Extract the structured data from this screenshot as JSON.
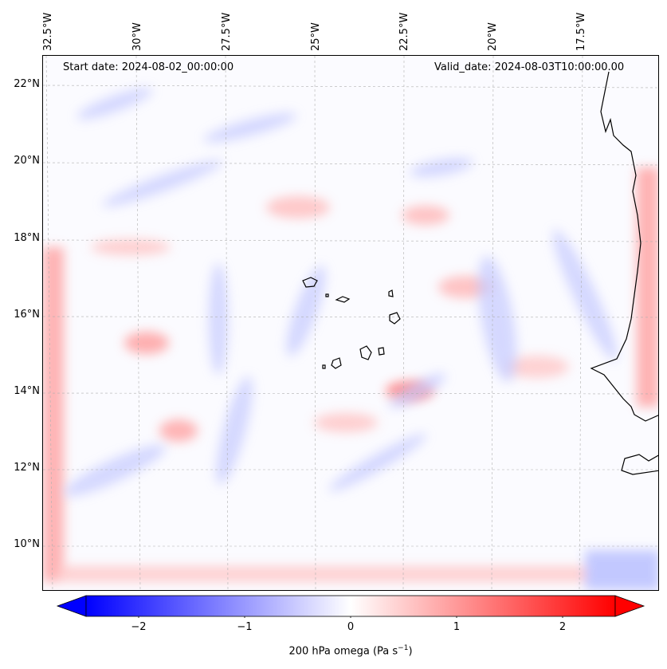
{
  "annotations": {
    "start": "Start date: 2024-08-02_00:00:00",
    "valid": "Valid_date: 2024-08-03T10:00:00.00"
  },
  "lon_ticks": [
    "32.5°W",
    "30°W",
    "27.5°W",
    "25°W",
    "22.5°W",
    "20°W",
    "17.5°W"
  ],
  "lat_ticks": [
    "22°N",
    "20°N",
    "18°N",
    "16°N",
    "14°N",
    "12°N",
    "10°N"
  ],
  "colorbar": {
    "ticks": [
      "−2",
      "−1",
      "0",
      "1",
      "2"
    ],
    "label": "200 hPa omega (Pa s",
    "label_sup": "−1",
    "label_end": ")",
    "range": [
      -2.5,
      2.5
    ],
    "colors": {
      "low": "#0000ff",
      "mid": "#ffffff",
      "high": "#ff0000"
    }
  }
}
